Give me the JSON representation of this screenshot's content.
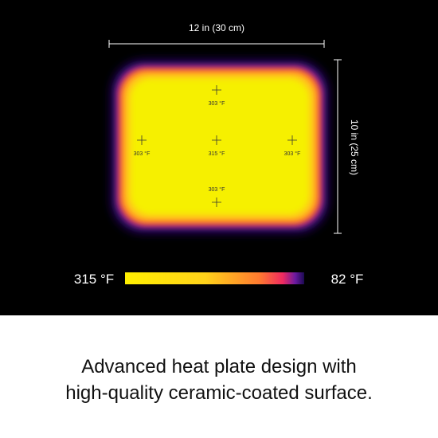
{
  "dimensions": {
    "width": "12 in (30 cm)",
    "height": "10 in (25 cm)"
  },
  "readings": [
    {
      "label": "303 °F"
    },
    {
      "label": "303 °F"
    },
    {
      "label": "315 °F"
    },
    {
      "label": "303 °F"
    },
    {
      "label": "303 °F"
    }
  ],
  "scale": {
    "max": "315 °F",
    "min": "82 °F"
  },
  "caption": {
    "line1": "Advanced heat plate design with",
    "line2": "high-quality ceramic-coated surface."
  }
}
